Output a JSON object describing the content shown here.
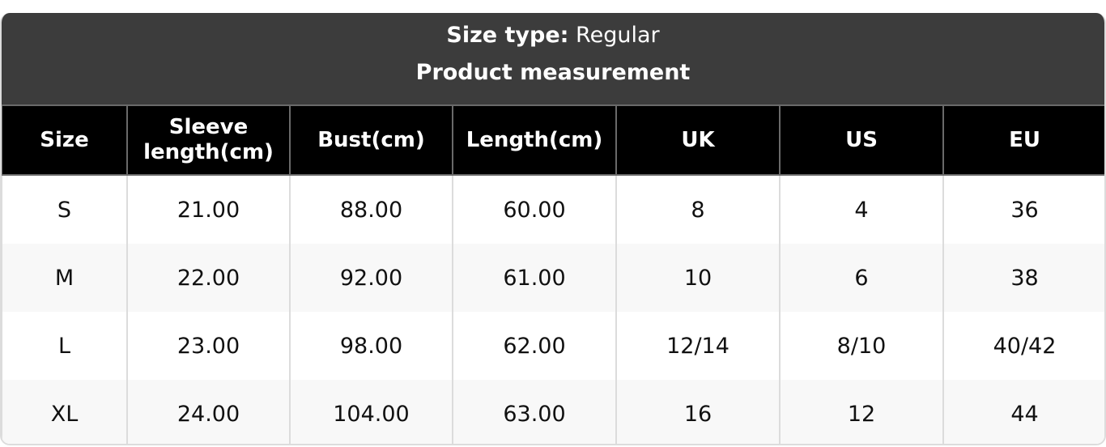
{
  "header": {
    "size_type_label": "Size type:",
    "size_type_value": "Regular",
    "subtitle": "Product measurement"
  },
  "table": {
    "columns": [
      "Size",
      "Sleeve length(cm)",
      "Bust(cm)",
      "Length(cm)",
      "UK",
      "US",
      "EU"
    ],
    "rows": [
      [
        "S",
        "21.00",
        "88.00",
        "60.00",
        "8",
        "4",
        "36"
      ],
      [
        "M",
        "22.00",
        "92.00",
        "61.00",
        "10",
        "6",
        "38"
      ],
      [
        "L",
        "23.00",
        "98.00",
        "62.00",
        "12/14",
        "8/10",
        "40/42"
      ],
      [
        "XL",
        "24.00",
        "104.00",
        "63.00",
        "16",
        "12",
        "44"
      ]
    ]
  },
  "colors": {
    "title_bg": "#3c3c3c",
    "header_bg": "#000000",
    "alt_row": "#f8f8f8"
  }
}
